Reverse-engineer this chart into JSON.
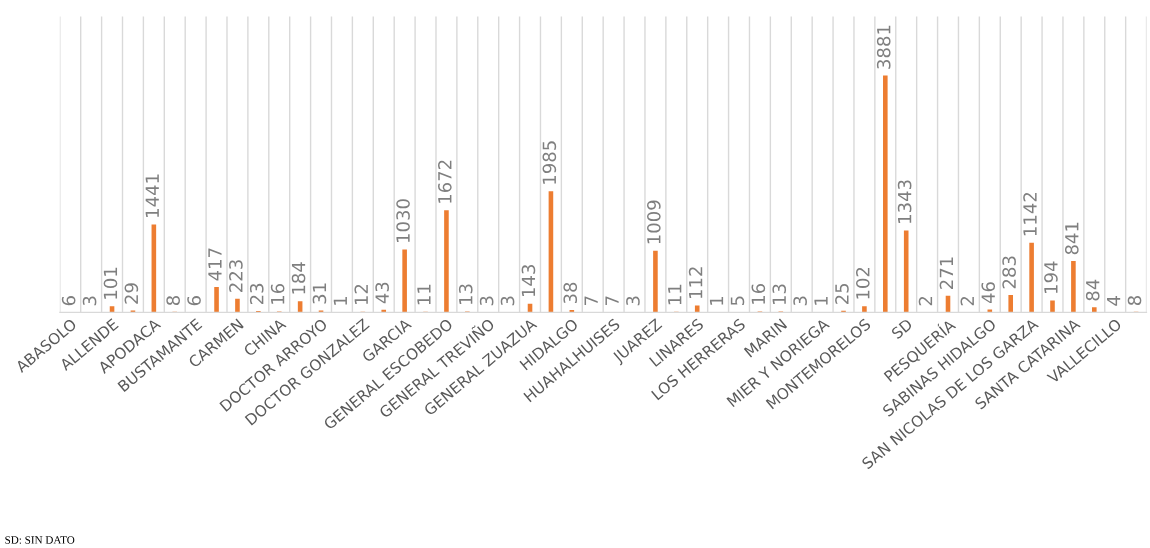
{
  "chart_data": {
    "type": "bar",
    "categories": [
      "ABASOLO",
      null,
      "ALLENDE",
      null,
      "APODACA",
      null,
      "BUSTAMANTE",
      null,
      "CARMEN",
      null,
      "CHINA",
      null,
      "DOCTOR ARROYO",
      null,
      "DOCTOR GONZALEZ",
      null,
      "GARCIA",
      null,
      "GENERAL ESCOBEDO",
      null,
      "GENERAL TREVIÑO",
      null,
      "GENERAL ZUAZUA",
      null,
      "HIDALGO",
      null,
      "HUAHALHUISES",
      null,
      "JUAREZ",
      null,
      "LINARES",
      null,
      "LOS HERRERAS",
      null,
      "MARIN",
      null,
      "MIER Y NORIEGA",
      null,
      "MONTEMORELOS",
      null,
      "SD",
      null,
      "PESQUERÍA",
      null,
      "SABINAS HIDALGO",
      null,
      "SAN NICOLAS DE LOS GARZA",
      null,
      "SANTA CATARINA",
      null,
      "VALLECILLO",
      null
    ],
    "values": [
      6,
      3,
      101,
      29,
      1441,
      8,
      6,
      417,
      223,
      23,
      16,
      184,
      31,
      1,
      12,
      43,
      1030,
      11,
      1672,
      13,
      3,
      3,
      143,
      1985,
      38,
      7,
      7,
      3,
      1009,
      11,
      112,
      1,
      5,
      16,
      13,
      3,
      1,
      25,
      102,
      3881,
      1343,
      2,
      271,
      2,
      46,
      283,
      1142,
      194,
      841,
      84,
      4,
      8
    ],
    "color": "#ed7d31",
    "data_labels": true,
    "grid": "x",
    "legend": false,
    "annotations": [
      "SD: SIN DATO"
    ]
  }
}
